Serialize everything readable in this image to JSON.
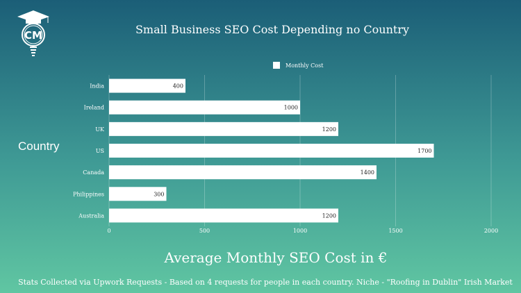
{
  "logo_text": "CM",
  "chart_data": {
    "type": "bar",
    "orientation": "horizontal",
    "title": "Small Business SEO Cost Depending no Country",
    "xlabel": "Average Monthly SEO Cost in €",
    "ylabel": "Country",
    "categories": [
      "India",
      "Ireland",
      "UK",
      "US",
      "Canada",
      "Philippines",
      "Australia"
    ],
    "series": [
      {
        "name": "Monthly Cost",
        "values": [
          400,
          1000,
          1200,
          1700,
          1400,
          300,
          1200
        ],
        "color": "#ffffff"
      }
    ],
    "xlim": [
      0,
      2000
    ],
    "xticks": [
      0,
      500,
      1000,
      1500,
      2000
    ],
    "grid": true,
    "legend": "top-center"
  },
  "footnote": "Stats Collected via Upwork Requests - Based on 4 requests for people in each country. Niche - \"Roofing in Dublin\" Irish Market"
}
